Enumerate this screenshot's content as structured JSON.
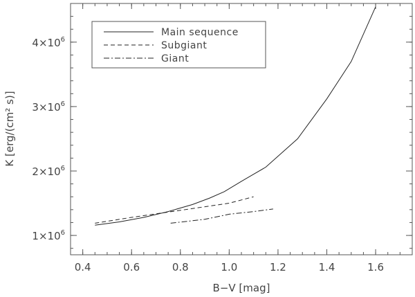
{
  "chart_data": {
    "type": "line",
    "xlabel": "B−V [mag]",
    "ylabel": "K [erg/(cm² s)]",
    "xlim": [
      0.35,
      1.75
    ],
    "ylim": [
      700000,
      4600000
    ],
    "x_ticks": [
      0.4,
      0.6,
      0.8,
      1.0,
      1.2,
      1.4,
      1.6
    ],
    "x_tick_labels": [
      "0.4",
      "0.6",
      "0.8",
      "1.0",
      "1.2",
      "1.4",
      "1.6"
    ],
    "y_ticks": [
      1000000,
      2000000,
      3000000,
      4000000
    ],
    "y_tick_labels": [
      {
        "mantissa": "1×10",
        "exp": "6"
      },
      {
        "mantissa": "2×10",
        "exp": "6"
      },
      {
        "mantissa": "3×10",
        "exp": "6"
      },
      {
        "mantissa": "4×10",
        "exp": "6"
      }
    ],
    "grid": false,
    "legend_position": "top-left",
    "series": [
      {
        "name": "Main sequence",
        "style": "solid",
        "x": [
          0.45,
          0.55,
          0.65,
          0.75,
          0.85,
          0.92,
          0.98,
          1.05,
          1.15,
          1.28,
          1.4,
          1.5,
          1.6
        ],
        "y": [
          1160000,
          1210000,
          1280000,
          1370000,
          1480000,
          1580000,
          1680000,
          1840000,
          2060000,
          2500000,
          3120000,
          3700000,
          4550000
        ]
      },
      {
        "name": "Subgiant",
        "style": "dashed",
        "x": [
          0.45,
          0.6,
          0.8,
          1.0,
          1.1
        ],
        "y": [
          1190000,
          1280000,
          1390000,
          1500000,
          1600000
        ]
      },
      {
        "name": "Giant",
        "style": "dashdot",
        "x": [
          0.76,
          0.9,
          1.0,
          1.1,
          1.18
        ],
        "y": [
          1190000,
          1250000,
          1330000,
          1370000,
          1410000
        ]
      }
    ]
  }
}
